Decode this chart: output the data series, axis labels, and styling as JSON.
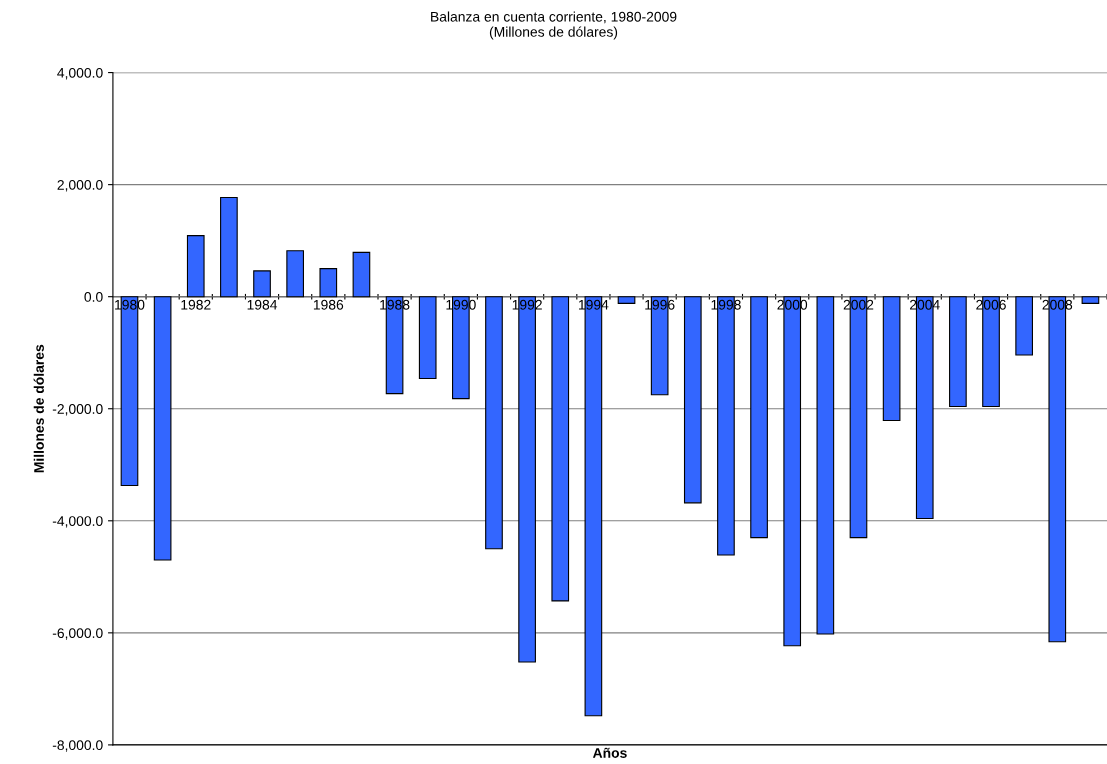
{
  "chart_data": {
    "type": "bar",
    "title": "Balanza en cuenta corriente, 1980-2009\n(Millones de dólares)",
    "xlabel": "Años",
    "ylabel": "Millones de dólares",
    "categories": [
      "1980",
      null,
      "1982",
      null,
      "1984",
      null,
      "1986",
      null,
      "1988",
      null,
      "1990",
      null,
      "1992",
      null,
      "1994",
      null,
      "1996",
      null,
      "1998",
      null,
      "2000",
      null,
      "2002",
      null,
      "2004",
      null,
      "2006",
      null,
      "2008",
      null
    ],
    "values": [
      -3370,
      -4700,
      1090,
      1770,
      460,
      820,
      500,
      790,
      -1730,
      -1460,
      -1820,
      -4500,
      -6520,
      -5430,
      -7480,
      -120,
      -1750,
      -3680,
      -4610,
      -4300,
      -6230,
      -6020,
      -4300,
      -2210,
      -3960,
      -1960,
      -1960,
      -1040,
      -6160,
      -120
    ],
    "color": "#3366ff",
    "ylim": [
      -8000,
      4000
    ],
    "yticks": [
      {
        "value": -8000,
        "label": "-8,000.0"
      },
      {
        "value": -6000,
        "label": "-6,000.0"
      },
      {
        "value": -4000,
        "label": "-4,000.0"
      },
      {
        "value": -2000,
        "label": "-2,000.0"
      },
      {
        "value": 0,
        "label": "0.0"
      },
      {
        "value": 2000,
        "label": "2,000.0"
      },
      {
        "value": 4000,
        "label": "4,000.0"
      }
    ],
    "grid": "y",
    "legend": false
  }
}
